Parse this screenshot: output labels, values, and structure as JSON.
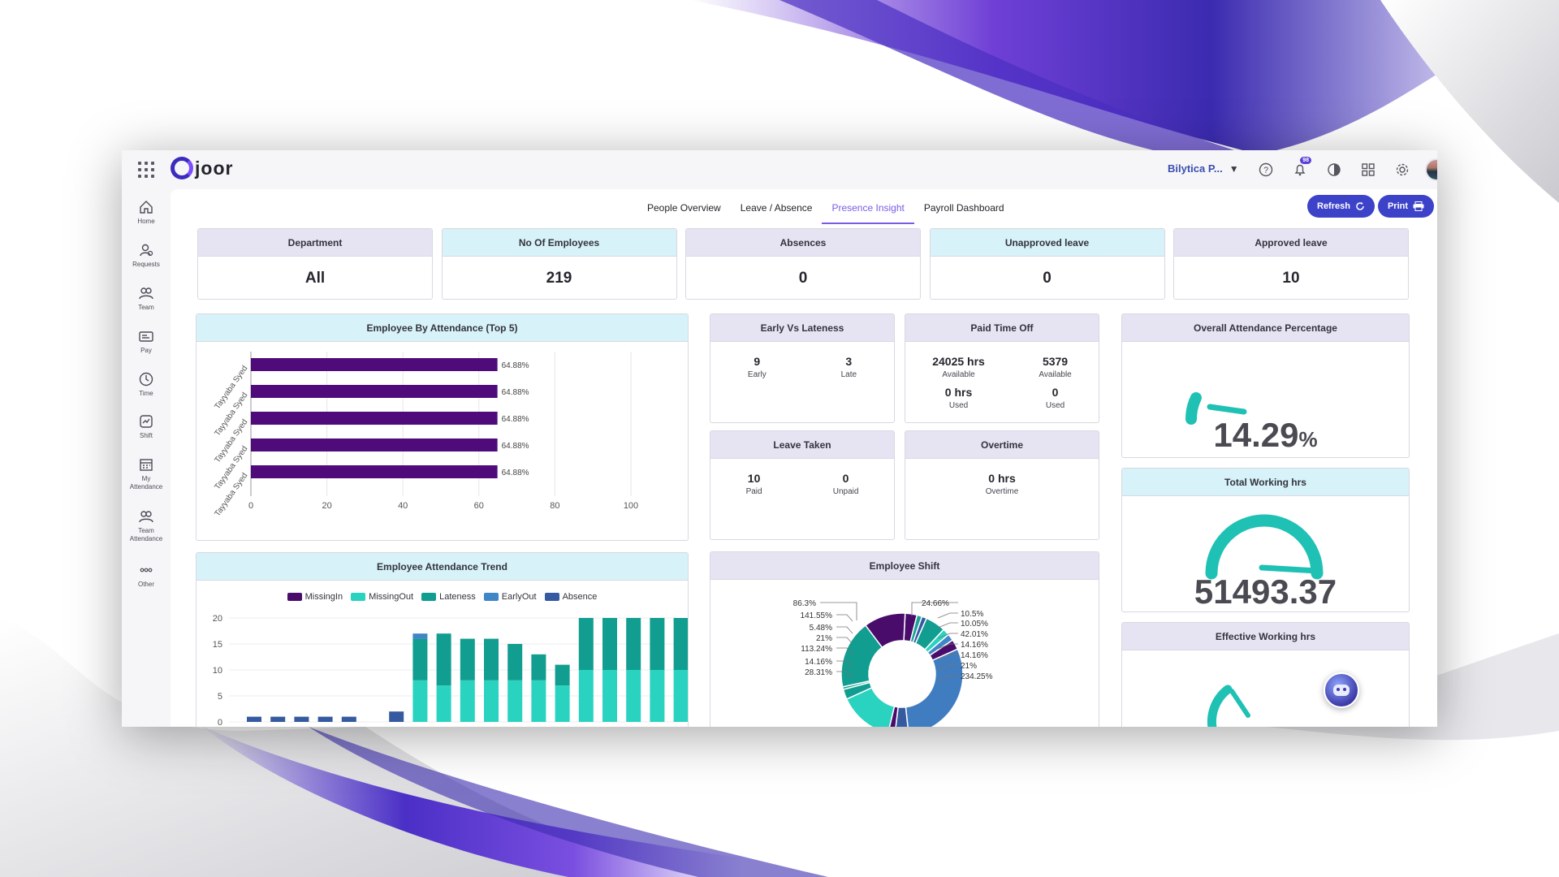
{
  "app": {
    "logo": "joor",
    "company": "Bilytica P..."
  },
  "notifications": {
    "count": "98"
  },
  "sidebar": [
    {
      "label": "Home",
      "icon": "home-icon"
    },
    {
      "label": "Requests",
      "icon": "requests-icon"
    },
    {
      "label": "Team",
      "icon": "team-icon"
    },
    {
      "label": "Pay",
      "icon": "pay-icon"
    },
    {
      "label": "Time",
      "icon": "clock-icon"
    },
    {
      "label": "Shift",
      "icon": "shift-icon"
    },
    {
      "label": "My Attendance",
      "icon": "calendar-icon"
    },
    {
      "label": "Team Attendance",
      "icon": "team-attendance-icon"
    },
    {
      "label": "Other",
      "icon": "more-icon"
    }
  ],
  "tabs": [
    "People Overview",
    "Leave / Absence",
    "Presence Insight",
    "Payroll Dashboard"
  ],
  "active_tab": "Presence Insight",
  "actions": {
    "refresh": "Refresh",
    "print": "Print"
  },
  "kpis": [
    {
      "label": "Department",
      "value": "All"
    },
    {
      "label": "No Of Employees",
      "value": "219"
    },
    {
      "label": "Absences",
      "value": "0"
    },
    {
      "label": "Unapproved leave",
      "value": "0"
    },
    {
      "label": "Approved leave",
      "value": "10"
    }
  ],
  "early_vs_lateness": {
    "title": "Early Vs Lateness",
    "early_value": "9",
    "early_label": "Early",
    "late_value": "3",
    "late_label": "Late"
  },
  "paid_time_off": {
    "title": "Paid Time Off",
    "a_available": "24025 hrs",
    "a_available_label": "Available",
    "a_used": "0 hrs",
    "a_used_label": "Used",
    "b_available": "5379",
    "b_available_label": "Available",
    "b_used": "0",
    "b_used_label": "Used"
  },
  "leave_taken": {
    "title": "Leave Taken",
    "paid_value": "10",
    "paid_label": "Paid",
    "unpaid_value": "0",
    "unpaid_label": "Unpaid"
  },
  "overtime": {
    "title": "Overtime",
    "value": "0 hrs",
    "label": "Overtime"
  },
  "overall_attendance": {
    "title": "Overall Attendance Percentage",
    "value": "14.29",
    "unit": "%",
    "fraction": 0.1429
  },
  "total_working": {
    "title": "Total Working hrs",
    "value": "51493.37"
  },
  "effective_working": {
    "title": "Effective Working hrs"
  },
  "chart_data": [
    {
      "type": "bar",
      "orientation": "horizontal",
      "title": "Employee By Attendance (Top 5)",
      "categories": [
        "Tayyaba Syed",
        "Tayyaba Syed",
        "Tayyaba Syed",
        "Tayyaba Syed",
        "Tayyaba Syed"
      ],
      "values": [
        64.88,
        64.88,
        64.88,
        64.88,
        64.88
      ],
      "data_labels": [
        "64.88%",
        "64.88%",
        "64.88%",
        "64.88%",
        "64.88%"
      ],
      "xlim": [
        0,
        100
      ],
      "xticks": [
        "0",
        "20",
        "40",
        "60",
        "80",
        "100"
      ],
      "color": "#4f0b7a"
    },
    {
      "type": "bar",
      "stacked": true,
      "title": "Employee Attendance Trend",
      "legend": [
        {
          "name": "MissingIn",
          "color": "#4a0c6b"
        },
        {
          "name": "MissingOut",
          "color": "#29d3c0"
        },
        {
          "name": "Lateness",
          "color": "#119d8f"
        },
        {
          "name": "EarlyOut",
          "color": "#3f86c6"
        },
        {
          "name": "Absence",
          "color": "#355aa0"
        }
      ],
      "ylim": [
        0,
        20
      ],
      "yticks": [
        "20",
        "15",
        "10",
        "5",
        "0"
      ],
      "series": [
        {
          "name": "Absence",
          "values": [
            1,
            1,
            1,
            1,
            1,
            0,
            2,
            0,
            0,
            0,
            0,
            0,
            0,
            0,
            0,
            0,
            0,
            0,
            0
          ]
        },
        {
          "name": "MissingOut",
          "values": [
            0,
            0,
            0,
            0,
            0,
            0,
            0,
            8,
            7,
            8,
            8,
            8,
            8,
            7,
            10,
            10,
            10,
            10,
            10
          ]
        },
        {
          "name": "Lateness",
          "values": [
            0,
            0,
            0,
            0,
            0,
            0,
            0,
            8,
            10,
            8,
            8,
            7,
            5,
            4,
            10,
            10,
            10,
            10,
            10
          ]
        },
        {
          "name": "EarlyOut",
          "values": [
            0,
            0,
            0,
            0,
            0,
            0,
            0,
            1,
            0,
            0,
            0,
            0,
            0,
            0,
            0,
            0,
            0,
            0,
            0
          ]
        }
      ]
    },
    {
      "type": "pie",
      "donut": true,
      "title": "Employee Shift",
      "labels_left": [
        "86.3%",
        "141.55%",
        "5.48%",
        "21%",
        "113.24%",
        "14.16%",
        "28.31%"
      ],
      "labels_right": [
        "24.66%",
        "10.5%",
        "10.05%",
        "42.01%",
        "14.16%",
        "14.16%",
        "21%",
        "234.25%"
      ],
      "slices": [
        {
          "value": 24.66,
          "color": "#4a0c6b"
        },
        {
          "value": 10.5,
          "color": "#1aa396"
        },
        {
          "value": 10.05,
          "color": "#355aa0"
        },
        {
          "value": 42.01,
          "color": "#119d8f"
        },
        {
          "value": 14.16,
          "color": "#29d3c0"
        },
        {
          "value": 14.16,
          "color": "#3f86c6"
        },
        {
          "value": 21,
          "color": "#4a0c6b"
        },
        {
          "value": 234.25,
          "color": "#3f7cc0"
        },
        {
          "value": 28.31,
          "color": "#355aa0"
        },
        {
          "value": 14.16,
          "color": "#4a0c6b"
        },
        {
          "value": 113.24,
          "color": "#29d3c0"
        },
        {
          "value": 21,
          "color": "#119d8f"
        },
        {
          "value": 5.48,
          "color": "#1aa396"
        },
        {
          "value": 141.55,
          "color": "#119d8f"
        },
        {
          "value": 86.3,
          "color": "#4a0c6b"
        }
      ]
    }
  ]
}
